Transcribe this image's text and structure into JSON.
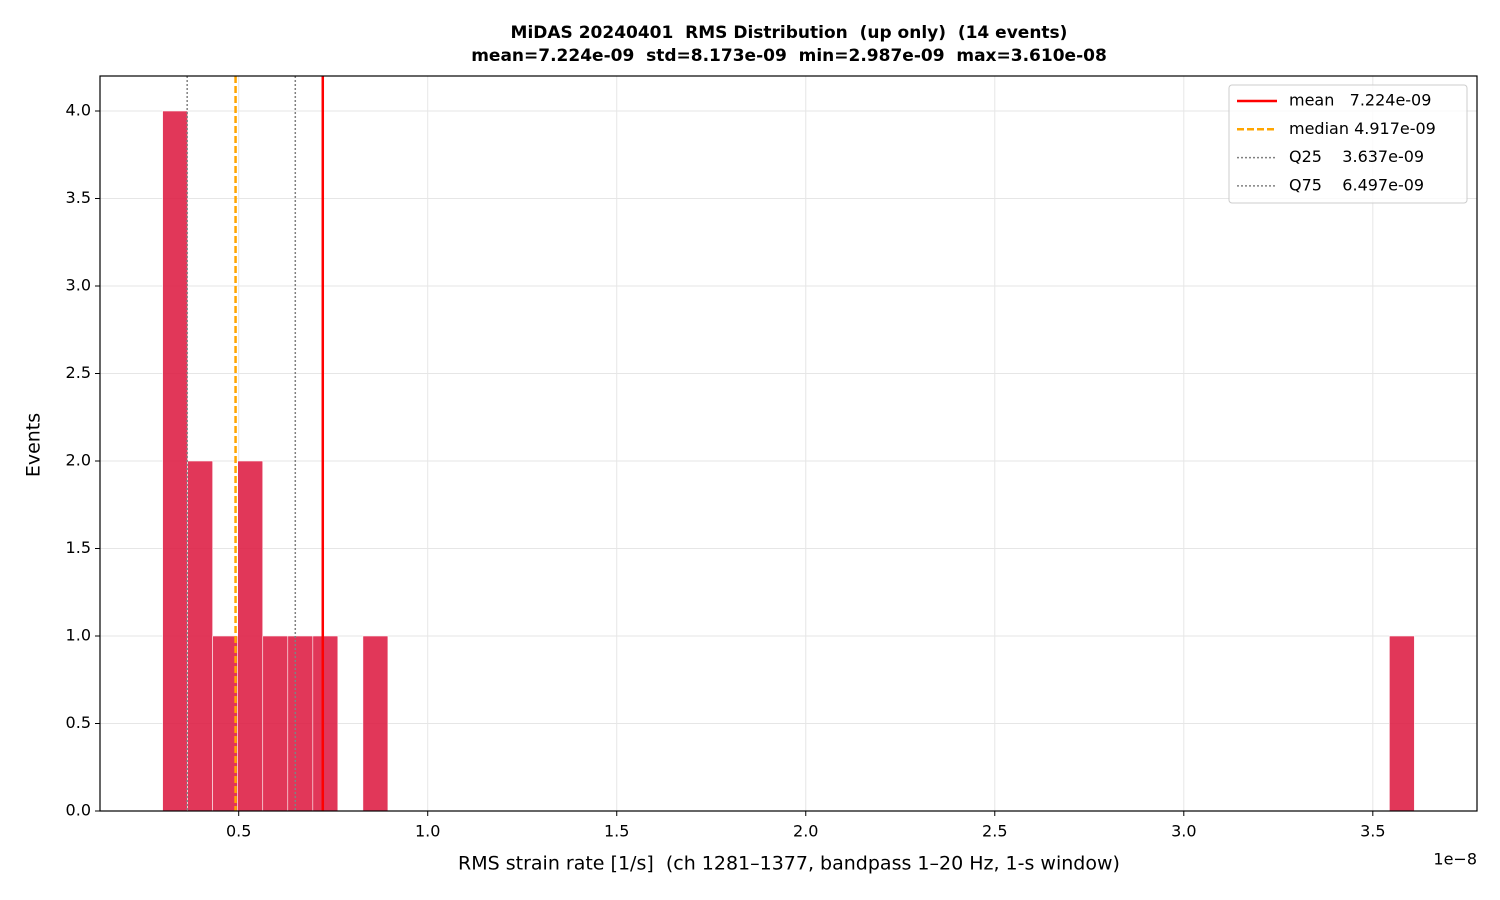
{
  "chart_data": {
    "type": "histogram",
    "title": "MiDAS 20240401  RMS Distribution  (up only)  (14 events)",
    "subtitle": "mean=7.224e-09  std=8.173e-09  min=2.987e-09  max=3.610e-08",
    "x_label": "RMS strain rate [1/s]  (ch 1281–1377, bandpass 1–20 Hz, 1-s window)",
    "y_label": "Events",
    "x_offset_label": "1e−8",
    "color": "#dc143c",
    "bins": [
      2.987e-09,
      3.64926e-09,
      4.31152e-09,
      4.97378e-09,
      5.63604e-09,
      6.2983e-09,
      6.96056e-09,
      7.62282e-09,
      8.28508e-09,
      8.94734e-09,
      9.6096e-09,
      1.027186e-08,
      1.093412e-08,
      1.159638e-08,
      1.225864e-08,
      1.29209e-08,
      1.358316e-08,
      1.424542e-08,
      1.490768e-08,
      1.556994e-08,
      1.62322e-08,
      1.689446e-08,
      1.755672e-08,
      1.821898e-08,
      1.888124e-08,
      1.95435e-08,
      2.020576e-08,
      2.086802e-08,
      2.153028e-08,
      2.219254e-08,
      2.28548e-08,
      2.351706e-08,
      2.417932e-08,
      2.484158e-08,
      2.550384e-08,
      2.61661e-08,
      2.682836e-08,
      2.749062e-08,
      2.815288e-08,
      2.881514e-08,
      2.94774e-08,
      3.013966e-08,
      3.080192e-08,
      3.146418e-08,
      3.212644e-08,
      3.27887e-08,
      3.345096e-08,
      3.411322e-08,
      3.477548e-08,
      3.543774e-08,
      3.61e-08
    ],
    "values": [
      4,
      2,
      1,
      2,
      1,
      1,
      1,
      0,
      1,
      0,
      0,
      0,
      0,
      0,
      0,
      0,
      0,
      0,
      0,
      0,
      0,
      0,
      0,
      0,
      0,
      0,
      0,
      0,
      0,
      0,
      0,
      0,
      0,
      0,
      0,
      0,
      0,
      0,
      0,
      0,
      0,
      0,
      0,
      0,
      0,
      0,
      0,
      0,
      0,
      1
    ],
    "reference_lines": [
      {
        "label": "mean   7.224e-09",
        "value": 7.224e-09,
        "color": "#ff0000",
        "style": "solid"
      },
      {
        "label": "median 4.917e-09",
        "value": 4.917e-09,
        "color": "#ffa500",
        "style": "dashed"
      },
      {
        "label": "Q25    3.637e-09",
        "value": 3.637e-09,
        "color": "#808080",
        "style": "dotted"
      },
      {
        "label": "Q75    6.497e-09",
        "value": 6.497e-09,
        "color": "#808080",
        "style": "dotted"
      }
    ],
    "xlim": [
      1.331e-09,
      3.7756e-08
    ],
    "ylim": [
      0,
      4.2
    ],
    "xticks": [
      {
        "value": 5e-09,
        "label": "0.5"
      },
      {
        "value": 1e-08,
        "label": "1.0"
      },
      {
        "value": 1.5e-08,
        "label": "1.5"
      },
      {
        "value": 2e-08,
        "label": "2.0"
      },
      {
        "value": 2.5e-08,
        "label": "2.5"
      },
      {
        "value": 3e-08,
        "label": "3.0"
      },
      {
        "value": 3.5e-08,
        "label": "3.5"
      }
    ],
    "yticks": [
      {
        "value": 0,
        "label": "0.0"
      },
      0.5,
      {
        "value": 1,
        "label": "1.0"
      },
      1.5,
      {
        "value": 2,
        "label": "2.0"
      },
      2.5,
      {
        "value": 3,
        "label": "3.0"
      },
      3.5,
      {
        "value": 4,
        "label": "4.0"
      }
    ],
    "grid": true,
    "legend": "upper right"
  }
}
